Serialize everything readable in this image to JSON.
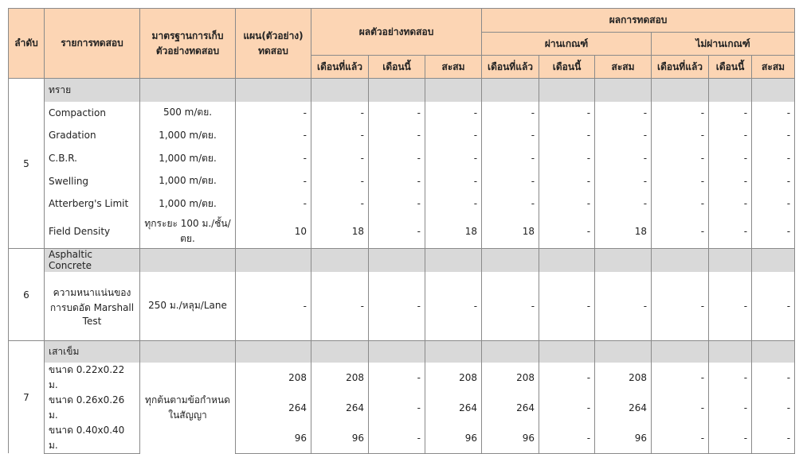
{
  "header": {
    "no": "ลำดับ",
    "item": "รายการทดสอบ",
    "standard": "มาตรฐานการเก็บ\nตัวอย่างทดสอบ",
    "plan": "แผน(ตัวอย่าง)\nทดสอบ",
    "sample": "ผลตัวอย่างทดสอบ",
    "result": "ผลการทดสอบ",
    "pass": "ผ่านเกณฑ์",
    "fail": "ไม่ผ่านเกณฑ์",
    "sub": [
      "เดือนที่แล้ว",
      "เดือนนี้",
      "สะสม"
    ]
  },
  "groups": [
    {
      "no": "5",
      "category": "ทราย",
      "items": [
        {
          "name": "Compaction",
          "standard": "500  m/ตย.",
          "values": [
            "-",
            "-",
            "-",
            "-",
            "-",
            "-",
            "-",
            "-",
            "-",
            "-"
          ]
        },
        {
          "name": "Gradation",
          "standard": "1,000 m/ตย.",
          "values": [
            "-",
            "-",
            "-",
            "-",
            "-",
            "-",
            "-",
            "-",
            "-",
            "-"
          ]
        },
        {
          "name": "C.B.R.",
          "standard": "1,000 m/ตย.",
          "values": [
            "-",
            "-",
            "-",
            "-",
            "-",
            "-",
            "-",
            "-",
            "-",
            "-"
          ]
        },
        {
          "name": "Swelling",
          "standard": "1,000 m/ตย.",
          "values": [
            "-",
            "-",
            "-",
            "-",
            "-",
            "-",
            "-",
            "-",
            "-",
            "-"
          ]
        },
        {
          "name": "Atterberg's Limit",
          "standard": "1,000 m/ตย.",
          "values": [
            "-",
            "-",
            "-",
            "-",
            "-",
            "-",
            "-",
            "-",
            "-",
            "-"
          ]
        },
        {
          "name": "Field Density",
          "standard": "ทุกระยะ 100 ม./ชั้น/\nตย.",
          "values": [
            "10",
            "18",
            "-",
            "18",
            "18",
            "-",
            "18",
            "-",
            "-",
            "-"
          ]
        }
      ]
    },
    {
      "no": "6",
      "category": "Asphaltic Concrete",
      "items": [
        {
          "name": "ความหนาแน่นของ\nการบดอัด Marshall\nTest",
          "standard": "250 ม./หลุม/Lane",
          "values": [
            "-",
            "-",
            "-",
            "-",
            "-",
            "-",
            "-",
            "-",
            "-",
            "-"
          ]
        }
      ]
    },
    {
      "no": "7",
      "category": "เสาเข็ม",
      "standard": "ทุกต้นตามข้อกำหนด\nในสัญญา",
      "items": [
        {
          "name": "ขนาด 0.22x0.22 ม.",
          "values": [
            "208",
            "208",
            "-",
            "208",
            "208",
            "-",
            "208",
            "-",
            "-",
            "-"
          ]
        },
        {
          "name": "ขนาด 0.26x0.26 ม.",
          "values": [
            "264",
            "264",
            "-",
            "264",
            "264",
            "-",
            "264",
            "-",
            "-",
            "-"
          ]
        },
        {
          "name": "ขนาด 0.40x0.40 ม.",
          "values": [
            "96",
            "96",
            "-",
            "96",
            "96",
            "-",
            "96",
            "-",
            "-",
            "-"
          ]
        }
      ]
    }
  ]
}
